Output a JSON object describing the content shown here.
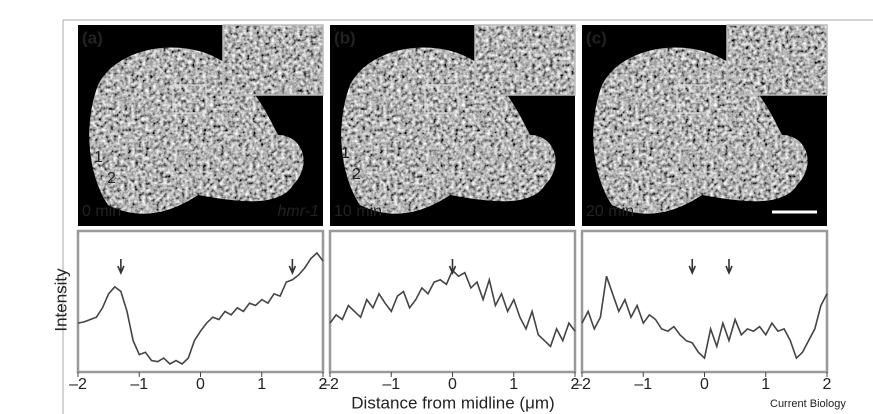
{
  "figure": {
    "panels": [
      {
        "label": "(a)",
        "time": "0 min",
        "gene": "hmr-1",
        "markers": [
          "1",
          "2"
        ]
      },
      {
        "label": "(b)",
        "time": "10 min",
        "markers": [
          "1",
          "2"
        ]
      },
      {
        "label": "(c)",
        "time": "20 min"
      }
    ],
    "y_label": "Intensity",
    "x_label": "Distance from midline (μm)",
    "credit": "Current Biology"
  },
  "chart_data": [
    {
      "type": "line",
      "color": "#444",
      "x": [
        -2,
        -1.9,
        -1.8,
        -1.7,
        -1.6,
        -1.5,
        -1.4,
        -1.3,
        -1.2,
        -1.1,
        -1,
        -0.9,
        -0.8,
        -0.7,
        -0.6,
        -0.5,
        -0.4,
        -0.3,
        -0.2,
        -0.1,
        0,
        0.1,
        0.2,
        0.3,
        0.4,
        0.5,
        0.6,
        0.7,
        0.8,
        0.9,
        1,
        1.1,
        1.2,
        1.3,
        1.4,
        1.5,
        1.6,
        1.7,
        1.8,
        1.9,
        2
      ],
      "values": [
        35,
        36,
        38,
        40,
        48,
        60,
        66,
        62,
        45,
        20,
        8,
        10,
        3,
        2,
        5,
        0,
        3,
        0,
        5,
        20,
        28,
        35,
        40,
        38,
        45,
        42,
        48,
        45,
        52,
        50,
        55,
        52,
        60,
        58,
        70,
        72,
        76,
        82,
        90,
        95,
        88
      ],
      "xlim": [
        -2,
        2
      ],
      "ylim": [
        0,
        100
      ],
      "xticks": [
        {
          "value": -2,
          "label": "–2"
        },
        {
          "value": -1,
          "label": "–1"
        },
        0,
        1,
        2
      ]
    },
    {
      "type": "line",
      "color": "#444",
      "x": [
        -2,
        -1.9,
        -1.8,
        -1.7,
        -1.6,
        -1.5,
        -1.4,
        -1.3,
        -1.2,
        -1.1,
        -1,
        -0.9,
        -0.8,
        -0.7,
        -0.6,
        -0.5,
        -0.4,
        -0.3,
        -0.2,
        -0.1,
        0,
        0.1,
        0.2,
        0.3,
        0.4,
        0.5,
        0.6,
        0.7,
        0.8,
        0.9,
        1,
        1.1,
        1.2,
        1.3,
        1.4,
        1.5,
        1.6,
        1.7,
        1.8,
        1.9,
        2
      ],
      "values": [
        35,
        42,
        38,
        50,
        45,
        40,
        55,
        48,
        60,
        52,
        45,
        58,
        62,
        48,
        55,
        65,
        60,
        70,
        72,
        68,
        80,
        75,
        78,
        65,
        70,
        55,
        72,
        50,
        60,
        45,
        55,
        40,
        30,
        45,
        25,
        20,
        15,
        30,
        20,
        35,
        28
      ],
      "xlim": [
        -2,
        2
      ],
      "ylim": [
        0,
        100
      ],
      "xticks": [
        {
          "value": -2,
          "label": "–2"
        },
        {
          "value": -1,
          "label": "–1"
        },
        0,
        1,
        2
      ]
    },
    {
      "type": "line",
      "color": "#444",
      "x": [
        -2,
        -1.9,
        -1.8,
        -1.7,
        -1.6,
        -1.5,
        -1.4,
        -1.3,
        -1.2,
        -1.1,
        -1,
        -0.9,
        -0.8,
        -0.7,
        -0.6,
        -0.5,
        -0.4,
        -0.3,
        -0.2,
        -0.1,
        0,
        0.1,
        0.2,
        0.3,
        0.4,
        0.5,
        0.6,
        0.7,
        0.8,
        0.9,
        1,
        1.1,
        1.2,
        1.3,
        1.4,
        1.5,
        1.6,
        1.7,
        1.8,
        1.9,
        2
      ],
      "values": [
        35,
        45,
        30,
        40,
        75,
        60,
        45,
        55,
        40,
        50,
        35,
        42,
        38,
        30,
        28,
        32,
        25,
        20,
        18,
        10,
        5,
        30,
        15,
        35,
        20,
        38,
        25,
        30,
        28,
        32,
        25,
        35,
        28,
        30,
        20,
        5,
        10,
        20,
        30,
        50,
        60
      ],
      "xlim": [
        -2,
        2
      ],
      "ylim": [
        0,
        100
      ],
      "xticks": [
        {
          "value": -2,
          "label": "–2"
        },
        {
          "value": -1,
          "label": "–1"
        },
        0,
        1,
        2
      ]
    }
  ]
}
